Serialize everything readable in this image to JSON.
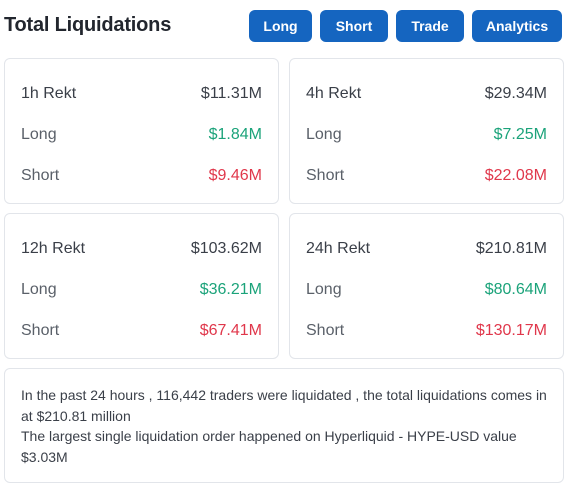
{
  "header": {
    "title": "Total Liquidations",
    "buttons": {
      "long": "Long",
      "short": "Short",
      "trade": "Trade",
      "analytics": "Analytics"
    }
  },
  "cards": [
    {
      "period": "1h Rekt",
      "total": "$11.31M",
      "long_label": "Long",
      "long": "$1.84M",
      "short_label": "Short",
      "short": "$9.46M"
    },
    {
      "period": "4h Rekt",
      "total": "$29.34M",
      "long_label": "Long",
      "long": "$7.25M",
      "short_label": "Short",
      "short": "$22.08M"
    },
    {
      "period": "12h Rekt",
      "total": "$103.62M",
      "long_label": "Long",
      "long": "$36.21M",
      "short_label": "Short",
      "short": "$67.41M"
    },
    {
      "period": "24h Rekt",
      "total": "$210.81M",
      "long_label": "Long",
      "long": "$80.64M",
      "short_label": "Short",
      "short": "$130.17M"
    }
  ],
  "summary": {
    "line1": "In the past 24 hours , 116,442 traders were liquidated , the total liquidations comes in at $210.81 million",
    "line2": "The largest single liquidation order happened on Hyperliquid - HYPE-USD value $3.03M"
  },
  "colors": {
    "accent": "#1565c0",
    "long": "#1ba37a",
    "short": "#e0374b"
  }
}
